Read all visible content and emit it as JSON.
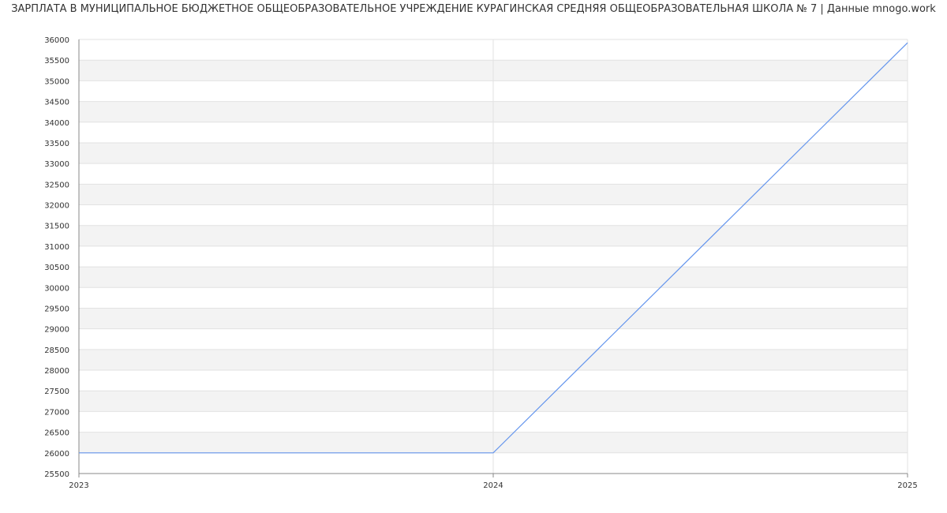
{
  "chart_data": {
    "type": "line",
    "title": "ЗАРПЛАТА В МУНИЦИПАЛЬНОЕ БЮДЖЕТНОЕ ОБЩЕОБРАЗОВАТЕЛЬНОЕ УЧРЕЖДЕНИЕ КУРАГИНСКАЯ СРЕДНЯЯ ОБЩЕОБРАЗОВАТЕЛЬНАЯ ШКОЛА № 7 | Данные mnogo.work",
    "x": [
      "2023",
      "2024",
      "2025"
    ],
    "values": [
      26000,
      26000,
      35920
    ],
    "ylim": [
      25500,
      36000
    ],
    "ytick_step": 500,
    "grid": true,
    "line_color": "#6495ed",
    "band_color": "#f3f3f3"
  }
}
